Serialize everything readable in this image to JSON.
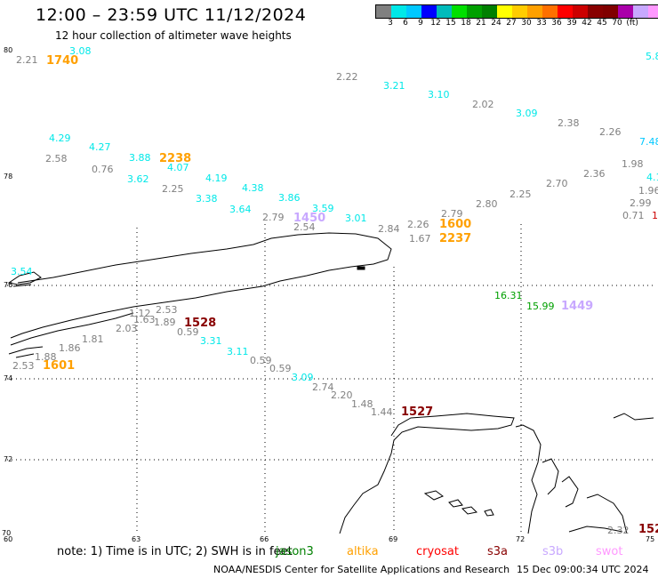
{
  "title": "12:00 – 23:59 UTC 11/12/2024",
  "subtitle": "12 hour collection of altimeter wave heights",
  "colorbar": {
    "unit_label": "(ft)",
    "colors": [
      "#808080",
      "#00e8e8",
      "#00c8ff",
      "#0000ff",
      "#00bbbb",
      "#00e000",
      "#00a000",
      "#008000",
      "#ffff00",
      "#ffcc00",
      "#ffa000",
      "#ff7000",
      "#ff0000",
      "#cc0000",
      "#880000",
      "#800000",
      "#aa00aa",
      "#c8a8ff",
      "#ff99ff",
      "#000000"
    ],
    "ticks": [
      "3",
      "6",
      "9",
      "12",
      "15",
      "18",
      "21",
      "24",
      "27",
      "30",
      "33",
      "36",
      "39",
      "42",
      "45",
      "70"
    ]
  },
  "axes": {
    "lat_labels": [
      "80",
      "78",
      "76",
      "74",
      "72",
      "70"
    ],
    "lon_labels": [
      "60",
      "63",
      "66",
      "69",
      "72",
      "75"
    ]
  },
  "observations": [
    {
      "text": "3.08",
      "color": "#00e8e8"
    },
    {
      "text": "2.21",
      "color": "#808080"
    },
    {
      "text": "1740",
      "color": "#ffa000"
    },
    {
      "text": "5.8",
      "color": "#00e8e8"
    },
    {
      "text": "2.22",
      "color": "#808080"
    },
    {
      "text": "3.21",
      "color": "#00e8e8"
    },
    {
      "text": "3.10",
      "color": "#00e8e8"
    },
    {
      "text": "2.02",
      "color": "#808080"
    },
    {
      "text": "3.09",
      "color": "#00e8e8"
    },
    {
      "text": "2.38",
      "color": "#808080"
    },
    {
      "text": "2.26",
      "color": "#808080"
    },
    {
      "text": "4.29",
      "color": "#00e8e8"
    },
    {
      "text": "7.48",
      "color": "#00c8ff"
    },
    {
      "text": "4.27",
      "color": "#00e8e8"
    },
    {
      "text": "2.58",
      "color": "#808080"
    },
    {
      "text": "3.88",
      "color": "#00e8e8"
    },
    {
      "text": "2238",
      "color": "#ffa000"
    },
    {
      "text": "0.76",
      "color": "#808080"
    },
    {
      "text": "4.07",
      "color": "#00e8e8"
    },
    {
      "text": "1.98",
      "color": "#808080"
    },
    {
      "text": "2.36",
      "color": "#808080"
    },
    {
      "text": "4.1",
      "color": "#00e8e8"
    },
    {
      "text": "3.62",
      "color": "#00e8e8"
    },
    {
      "text": "4.19",
      "color": "#00e8e8"
    },
    {
      "text": "2.70",
      "color": "#808080"
    },
    {
      "text": "1.96",
      "color": "#808080"
    },
    {
      "text": "2.25",
      "color": "#808080"
    },
    {
      "text": "4.38",
      "color": "#00e8e8"
    },
    {
      "text": "3.38",
      "color": "#00e8e8"
    },
    {
      "text": "3.86",
      "color": "#00e8e8"
    },
    {
      "text": "2.25",
      "color": "#808080"
    },
    {
      "text": "2.99",
      "color": "#808080"
    },
    {
      "text": "2.80",
      "color": "#808080"
    },
    {
      "text": "3.64",
      "color": "#00e8e8"
    },
    {
      "text": "3.59",
      "color": "#00e8e8"
    },
    {
      "text": "0.71",
      "color": "#808080"
    },
    {
      "text": "1",
      "color": "#cc0000"
    },
    {
      "text": "2.79",
      "color": "#808080"
    },
    {
      "text": "1450",
      "color": "#c8a8ff"
    },
    {
      "text": "3.01",
      "color": "#00e8e8"
    },
    {
      "text": "2.79",
      "color": "#808080"
    },
    {
      "text": "2.54",
      "color": "#808080"
    },
    {
      "text": "2.26",
      "color": "#808080"
    },
    {
      "text": "1600",
      "color": "#ffa000"
    },
    {
      "text": "2.84",
      "color": "#808080"
    },
    {
      "text": "1.67",
      "color": "#808080"
    },
    {
      "text": "2237",
      "color": "#ffa000"
    },
    {
      "text": "3.54",
      "color": "#00e8e8"
    },
    {
      "text": "16.31",
      "color": "#00a000"
    },
    {
      "text": "15.99",
      "color": "#00a000"
    },
    {
      "text": "1449",
      "color": "#c8a8ff"
    },
    {
      "text": "1.12",
      "color": "#808080"
    },
    {
      "text": "2.53",
      "color": "#808080"
    },
    {
      "text": "1.63",
      "color": "#808080"
    },
    {
      "text": "1.89",
      "color": "#808080"
    },
    {
      "text": "1528",
      "color": "#880000"
    },
    {
      "text": "2.03",
      "color": "#808080"
    },
    {
      "text": "0.59",
      "color": "#808080"
    },
    {
      "text": "1.81",
      "color": "#808080"
    },
    {
      "text": "3.31",
      "color": "#00e8e8"
    },
    {
      "text": "1.86",
      "color": "#808080"
    },
    {
      "text": "3.11",
      "color": "#00e8e8"
    },
    {
      "text": "1.88",
      "color": "#808080"
    },
    {
      "text": "0.59",
      "color": "#808080"
    },
    {
      "text": "2.53",
      "color": "#808080"
    },
    {
      "text": "1601",
      "color": "#ffa000"
    },
    {
      "text": "0.59",
      "color": "#808080"
    },
    {
      "text": "3.09",
      "color": "#00e8e8"
    },
    {
      "text": "2.74",
      "color": "#808080"
    },
    {
      "text": "2.20",
      "color": "#808080"
    },
    {
      "text": "1.48",
      "color": "#808080"
    },
    {
      "text": "1.44",
      "color": "#808080"
    },
    {
      "text": "1527",
      "color": "#880000"
    },
    {
      "text": "2.32",
      "color": "#808080"
    },
    {
      "text": "152",
      "color": "#880000"
    }
  ],
  "note": "note:  1) Time is in UTC;  2) SWH is in feet",
  "satellites": [
    {
      "name": "jason3",
      "color": "#008000"
    },
    {
      "name": "altika",
      "color": "#ffa000"
    },
    {
      "name": "cryosat",
      "color": "#ff0000"
    },
    {
      "name": "s3a",
      "color": "#880000"
    },
    {
      "name": "s3b",
      "color": "#c8a8ff"
    },
    {
      "name": "swot",
      "color": "#ff99ff"
    }
  ],
  "footer": "NOAA/NESDIS Center for Satellite Applications and Research",
  "footer_timestamp": "15 Dec 09:00:34 UTC 2024"
}
